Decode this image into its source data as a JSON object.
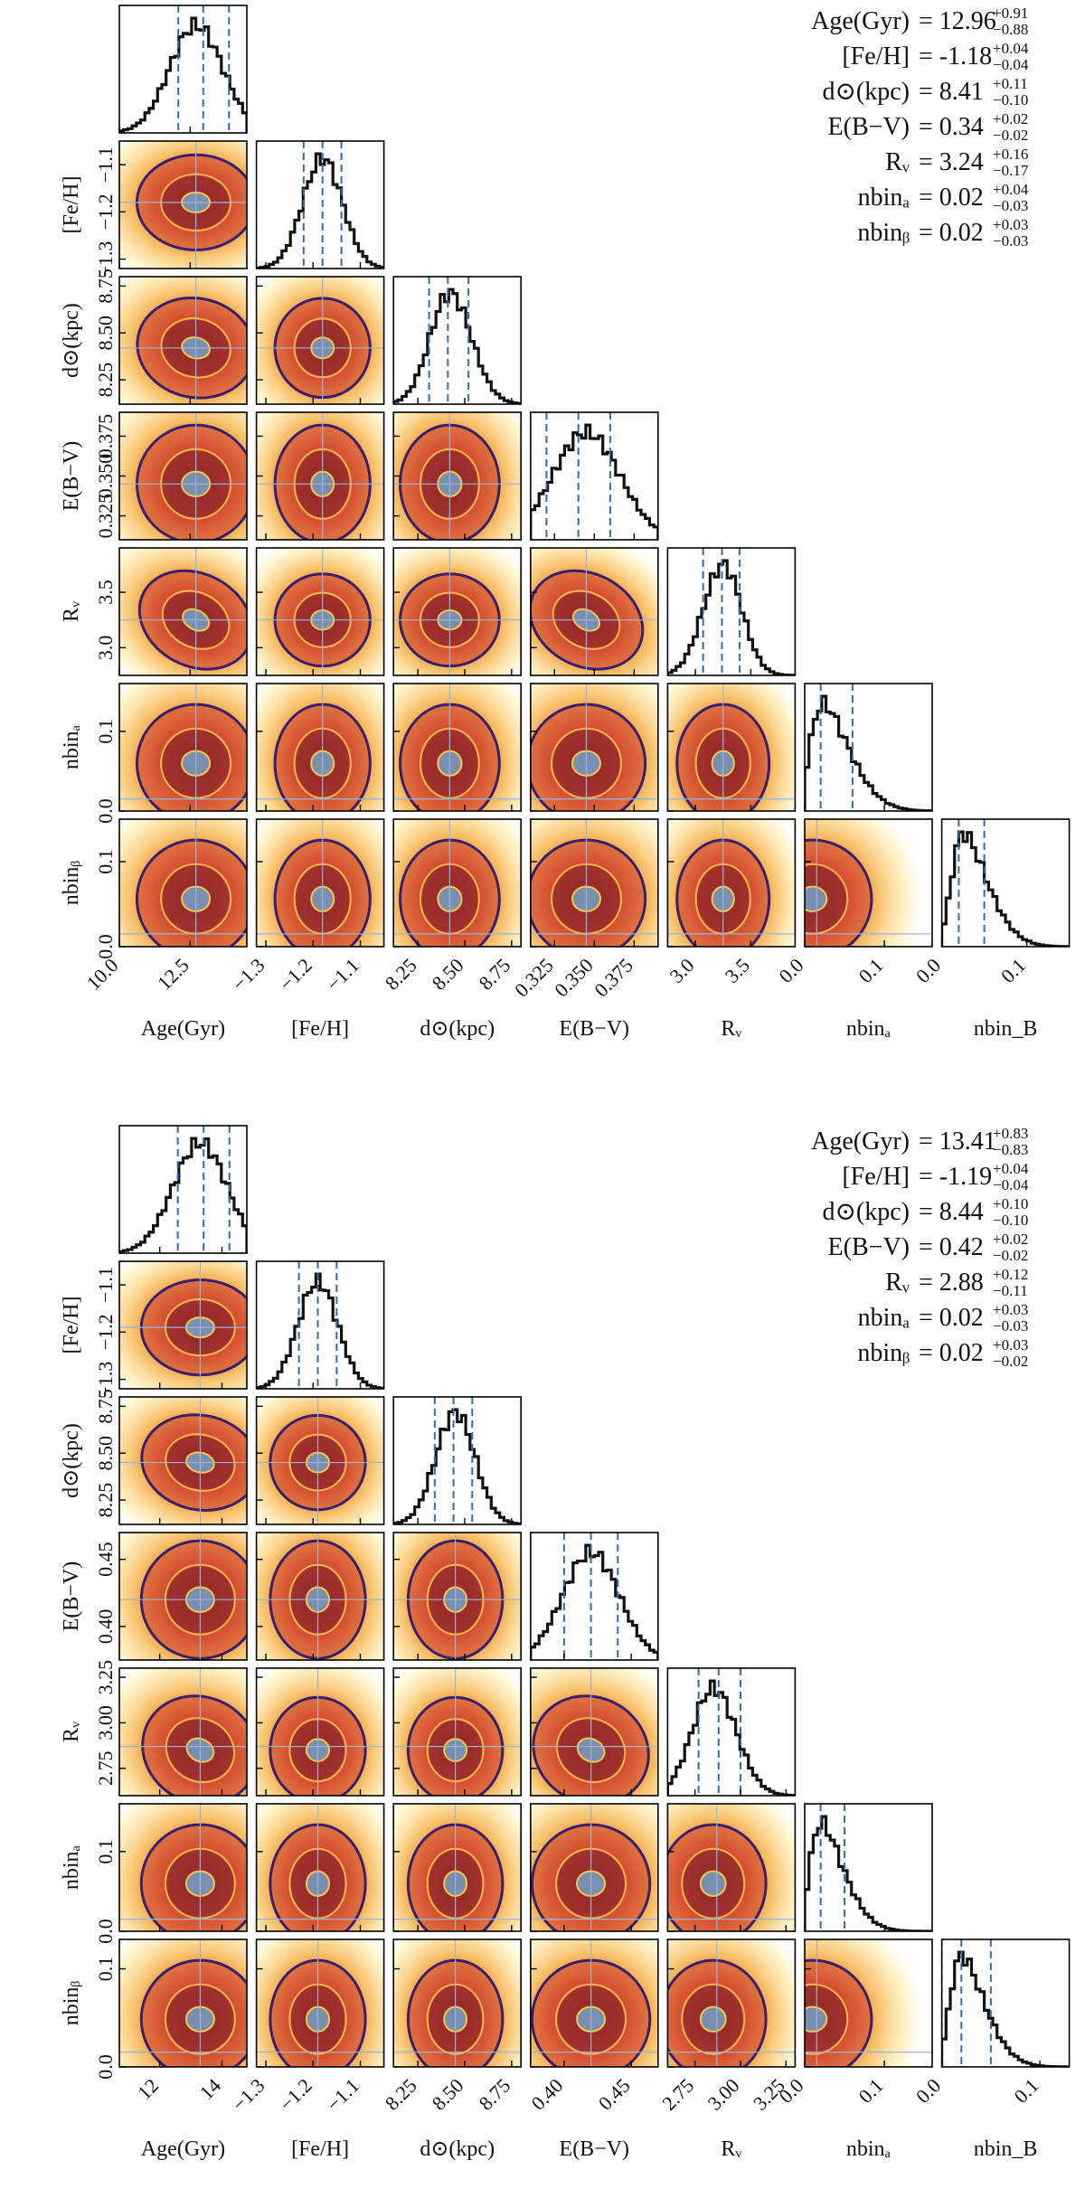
{
  "colors": {
    "hist": "#111111",
    "quantile": "#2f6db0",
    "truth": "#9bb4d6",
    "c_outer": "#fff0b3",
    "c_mid": "#f6b24a",
    "c_core": "#d2452a",
    "c_deep": "#7a1d2a",
    "contour_outer": "#3a1f6b",
    "contour_inner": "#f2c84b",
    "peak": "#7a8fb0"
  },
  "chart_data": [
    {
      "type": "corner",
      "name": "top-corner-plot",
      "parameters": [
        "Age(Gyr)",
        "[Fe/H]",
        "d⊙(kpc)",
        "E(B−V)",
        "Rᵥ",
        "nbinₐ",
        "nbin_B"
      ],
      "y_labels": [
        "",
        "[Fe/H]",
        "d⊙(kpc)",
        "E(B−V)",
        "Rᵥ",
        "nbinₐ",
        "nbinᵦ"
      ],
      "x_labels": [
        "Age(Gyr)",
        "[Fe/H]",
        "d⊙(kpc)",
        "E(B−V)",
        "Rᵥ",
        "nbinₐ",
        "nbin_B"
      ],
      "ranges": [
        [
          10.0,
          14.5
        ],
        [
          -1.32,
          -1.05
        ],
        [
          8.12,
          8.8
        ],
        [
          0.31,
          0.39
        ],
        [
          2.75,
          3.9
        ],
        [
          0.0,
          0.16
        ],
        [
          0.0,
          0.15
        ]
      ],
      "ticks": [
        {
          "v": [
            10.0,
            12.5
          ],
          "t": [
            "10.0",
            "12.5"
          ]
        },
        {
          "v": [
            -1.3,
            -1.2,
            -1.1
          ],
          "t": [
            "−1.3",
            "−1.2",
            "−1.1"
          ]
        },
        {
          "v": [
            8.25,
            8.5,
            8.75
          ],
          "t": [
            "8.25",
            "8.50",
            "8.75"
          ]
        },
        {
          "v": [
            0.325,
            0.35,
            0.375
          ],
          "t": [
            "0.325",
            "0.350",
            "0.375"
          ]
        },
        {
          "v": [
            3.0,
            3.5
          ],
          "t": [
            "3.0",
            "3.5"
          ]
        },
        {
          "v": [
            0.0,
            0.1
          ],
          "t": [
            "0.0",
            "0.1"
          ]
        },
        {
          "v": [
            0.0,
            0.1
          ],
          "t": [
            "0.0",
            "0.1"
          ]
        }
      ],
      "medians": [
        12.96,
        -1.18,
        8.41,
        0.34,
        3.24,
        0.02,
        0.02
      ],
      "lower_err": [
        0.88,
        0.04,
        0.1,
        0.02,
        0.17,
        0.03,
        0.03
      ],
      "upper_err": [
        0.91,
        0.04,
        0.11,
        0.02,
        0.16,
        0.04,
        0.03
      ],
      "peaks": [
        12.7,
        -1.18,
        8.42,
        0.345,
        3.25,
        0.01,
        0.015
      ],
      "truths": [
        12.7,
        -1.18,
        8.42,
        0.345,
        3.25,
        0.015,
        0.015
      ],
      "summary": [
        {
          "name": "Age(Gyr)",
          "value": "12.96",
          "plus": "+0.91",
          "minus": "−0.88"
        },
        {
          "name": "[Fe/H]",
          "value": "-1.18",
          "plus": "+0.04",
          "minus": "−0.04"
        },
        {
          "name": "d⊙(kpc)",
          "value": "8.41",
          "plus": "+0.11",
          "minus": "−0.10"
        },
        {
          "name": "E(B−V)",
          "value": "0.34",
          "plus": "+0.02",
          "minus": "−0.02"
        },
        {
          "name": "Rᵥ",
          "value": "3.24",
          "plus": "+0.16",
          "minus": "−0.17"
        },
        {
          "name": "nbinₐ",
          "value": "0.02",
          "plus": "+0.04",
          "minus": "−0.03"
        },
        {
          "name": "nbinᵦ",
          "value": "0.02",
          "plus": "+0.03",
          "minus": "−0.03"
        }
      ]
    },
    {
      "type": "corner",
      "name": "bottom-corner-plot",
      "parameters": [
        "Age(Gyr)",
        "[Fe/H]",
        "d⊙(kpc)",
        "E(B−V)",
        "Rᵥ",
        "nbinₐ",
        "nbin_B"
      ],
      "y_labels": [
        "",
        "[Fe/H]",
        "d⊙(kpc)",
        "E(B−V)",
        "Rᵥ",
        "nbinₐ",
        "nbinᵦ"
      ],
      "x_labels": [
        "Age(Gyr)",
        "[Fe/H]",
        "d⊙(kpc)",
        "E(B−V)",
        "Rᵥ",
        "nbinₐ",
        "nbin_B"
      ],
      "ranges": [
        [
          10.7,
          14.8
        ],
        [
          -1.32,
          -1.05
        ],
        [
          8.12,
          8.8
        ],
        [
          0.375,
          0.47
        ],
        [
          2.6,
          3.3
        ],
        [
          0.0,
          0.16
        ],
        [
          0.0,
          0.13
        ]
      ],
      "ticks": [
        {
          "v": [
            12,
            14
          ],
          "t": [
            "12",
            "14"
          ]
        },
        {
          "v": [
            -1.3,
            -1.2,
            -1.1
          ],
          "t": [
            "−1.3",
            "−1.2",
            "−1.1"
          ]
        },
        {
          "v": [
            8.25,
            8.5,
            8.75
          ],
          "t": [
            "8.25",
            "8.50",
            "8.75"
          ]
        },
        {
          "v": [
            0.4,
            0.45
          ],
          "t": [
            "0.40",
            "0.45"
          ]
        },
        {
          "v": [
            2.75,
            3.0,
            3.25
          ],
          "t": [
            "2.75",
            "3.00",
            "3.25"
          ]
        },
        {
          "v": [
            0.0,
            0.1
          ],
          "t": [
            "0.0",
            "0.1"
          ]
        },
        {
          "v": [
            0.0,
            0.1
          ],
          "t": [
            "0.0",
            "0.1"
          ]
        }
      ],
      "medians": [
        13.41,
        -1.19,
        8.44,
        0.42,
        2.88,
        0.02,
        0.02
      ],
      "lower_err": [
        0.83,
        0.04,
        0.1,
        0.02,
        0.11,
        0.03,
        0.02
      ],
      "upper_err": [
        0.83,
        0.04,
        0.1,
        0.02,
        0.12,
        0.03,
        0.03
      ],
      "peaks": [
        13.3,
        -1.19,
        8.45,
        0.42,
        2.85,
        0.01,
        0.012
      ],
      "truths": [
        13.3,
        -1.19,
        8.45,
        0.42,
        2.87,
        0.015,
        0.015
      ],
      "summary": [
        {
          "name": "Age(Gyr)",
          "value": "13.41",
          "plus": "+0.83",
          "minus": "−0.83"
        },
        {
          "name": "[Fe/H]",
          "value": "-1.19",
          "plus": "+0.04",
          "minus": "−0.04"
        },
        {
          "name": "d⊙(kpc)",
          "value": "8.44",
          "plus": "+0.10",
          "minus": "−0.10"
        },
        {
          "name": "E(B−V)",
          "value": "0.42",
          "plus": "+0.02",
          "minus": "−0.02"
        },
        {
          "name": "Rᵥ",
          "value": "2.88",
          "plus": "+0.12",
          "minus": "−0.11"
        },
        {
          "name": "nbinₐ",
          "value": "0.02",
          "plus": "+0.03",
          "minus": "−0.03"
        },
        {
          "name": "nbinᵦ",
          "value": "0.02",
          "plus": "+0.03",
          "minus": "−0.02"
        }
      ]
    }
  ]
}
